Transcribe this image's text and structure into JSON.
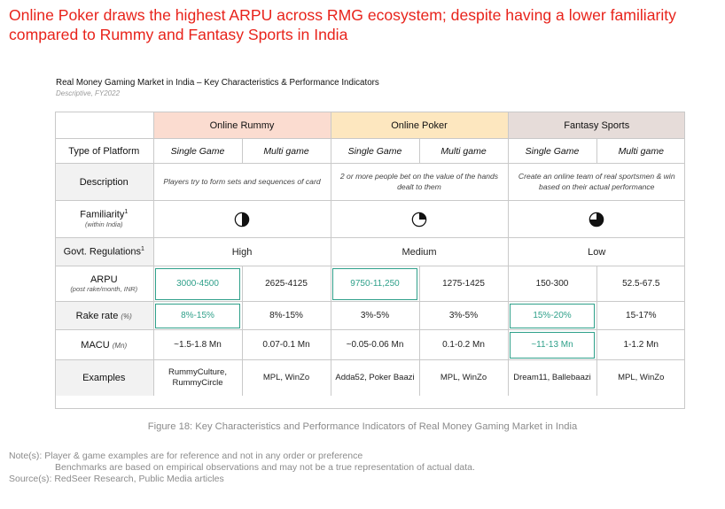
{
  "headline": "Online Poker draws the highest ARPU across RMG ecosystem; despite having a lower familiarity compared to Rummy and Fantasy Sports in India",
  "table_title": "Real Money Gaming Market in India – Key Characteristics & Performance Indicators",
  "table_subtitle": "Descriptive, FY2022",
  "groups": [
    "Online Rummy",
    "Online Poker",
    "Fantasy Sports"
  ],
  "group_colors": [
    "#fbdcd0",
    "#fde7bf",
    "#e6dcd9"
  ],
  "accent_color": "#2fa08a",
  "rows": {
    "type": {
      "label": "Type of Platform",
      "values": [
        "Single Game",
        "Multi game",
        "Single Game",
        "Multi game",
        "Single Game",
        "Multi game"
      ]
    },
    "description": {
      "label": "Description",
      "values": [
        "Players try to form sets and sequences of card",
        "2 or more people bet on the value of the hands dealt to them",
        "Create an online team of real sportsmen & win based on their actual performance"
      ]
    },
    "familiarity": {
      "label": "Familiarity",
      "sup": "1",
      "note": "(within India)",
      "icons": [
        "half-circle-icon",
        "quarter-circle-icon",
        "three-quarter-circle-icon"
      ],
      "levels": [
        0.5,
        0.25,
        0.75
      ]
    },
    "regulations": {
      "label": "Govt. Regulations",
      "sup": "1",
      "values": [
        "High",
        "Medium",
        "Low"
      ]
    },
    "arpu": {
      "label": "ARPU",
      "note": "(post rake/month, INR)",
      "values": [
        "3000-4500",
        "2625-4125",
        "9750-11,250",
        "1275-1425",
        "150-300",
        "52.5-67.5"
      ]
    },
    "rake": {
      "label": "Rake rate",
      "note": "(%)",
      "values": [
        "8%-15%",
        "8%-15%",
        "3%-5%",
        "3%-5%",
        "15%-20%",
        "15-17%"
      ]
    },
    "macu": {
      "label": "MACU",
      "note": "(Mn)",
      "values": [
        "~1.5-1.8 Mn",
        "0.07-0.1 Mn",
        "~0.05-0.06 Mn",
        "0.1-0.2 Mn",
        "~11-13 Mn",
        "1-1.2 Mn"
      ]
    },
    "examples": {
      "label": "Examples",
      "values": [
        "RummyCulture, RummyCircle",
        "MPL, WinZo",
        "Adda52, Poker Baazi",
        "MPL, WinZo",
        "Dream11, Ballebaazi",
        "MPL, WinZo"
      ]
    }
  },
  "caption": "Figure 18: Key Characteristics and Performance Indicators of Real Money Gaming Market in India",
  "notes": {
    "line1": "Note(s):  Player & game examples are for reference and not in any order or preference",
    "line2": "Benchmarks are based on empirical observations and may not be a true representation of actual data.",
    "line3": "Source(s): RedSeer Research, Public Media articles"
  }
}
